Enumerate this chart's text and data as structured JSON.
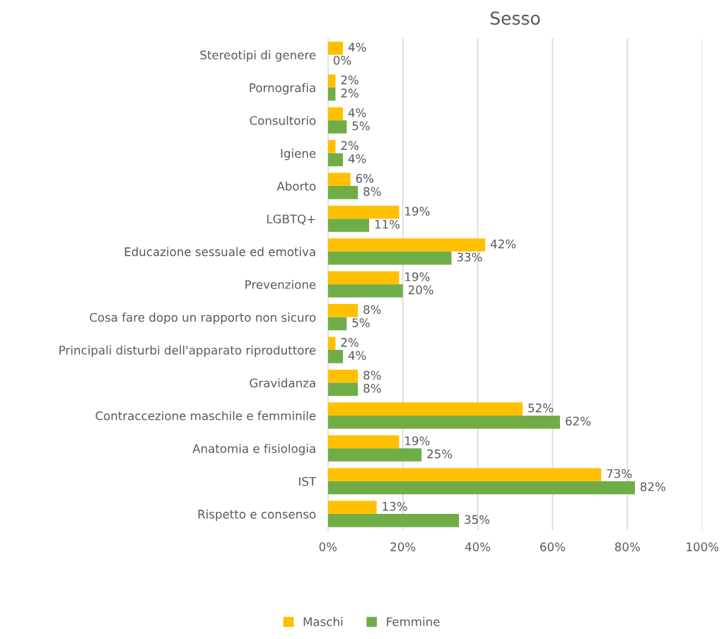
{
  "chart_data": {
    "type": "bar",
    "orientation": "horizontal",
    "title": "Sesso",
    "categories": [
      "Stereotipi di genere",
      "Pornografia",
      "Consultorio",
      "Igiene",
      "Aborto",
      "LGBTQ+",
      "Educazione sessuale ed emotiva",
      "Prevenzione",
      "Cosa fare dopo un rapporto non sicuro",
      "Principali disturbi dell'apparato riproduttore",
      "Gravidanza",
      "Contraccezione maschile e femminile",
      "Anatomia e fisiologia",
      "IST",
      "Rispetto e consenso"
    ],
    "series": [
      {
        "name": "Maschi",
        "color": "#ffc000",
        "values": [
          4,
          2,
          4,
          2,
          6,
          19,
          42,
          19,
          8,
          2,
          8,
          52,
          19,
          73,
          13
        ],
        "value_labels": [
          "4%",
          "2%",
          "4%",
          "2%",
          "6%",
          "19%",
          "42%",
          "19%",
          "8%",
          "2%",
          "8%",
          "52%",
          "19%",
          "73%",
          "13%"
        ]
      },
      {
        "name": "Femmine",
        "color": "#70ad47",
        "values": [
          0,
          2,
          5,
          4,
          8,
          11,
          33,
          20,
          5,
          4,
          8,
          62,
          25,
          82,
          35
        ],
        "value_labels": [
          "0%",
          "2%",
          "5%",
          "4%",
          "8%",
          "11%",
          "33%",
          "20%",
          "5%",
          "4%",
          "8%",
          "62%",
          "25%",
          "82%",
          "35%"
        ]
      }
    ],
    "xlim": [
      0,
      100
    ],
    "xticks": [
      {
        "value": 0,
        "label": "0%"
      },
      {
        "value": 20,
        "label": "20%"
      },
      {
        "value": 40,
        "label": "40%"
      },
      {
        "value": 60,
        "label": "60%"
      },
      {
        "value": 80,
        "label": "80%"
      },
      {
        "value": 100,
        "label": "100%"
      }
    ],
    "grid": "x",
    "legend": "bottom"
  }
}
